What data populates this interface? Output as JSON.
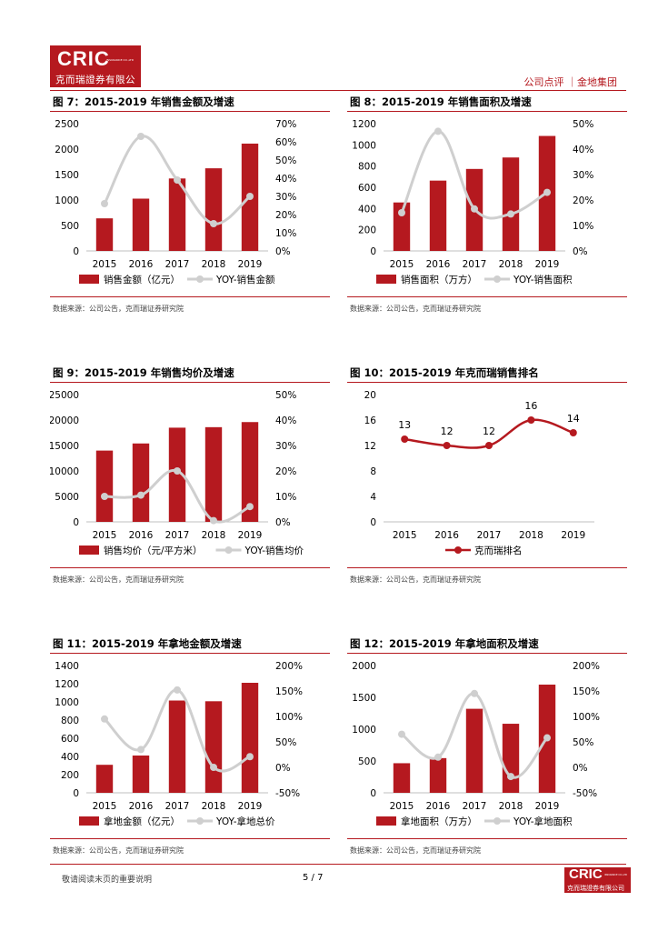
{
  "header": {
    "logo_text": "CRIC",
    "logo_tiny": "INSURANCE CO.,LTD",
    "logo_cn": "克而瑞證券有限公司",
    "right_text": "公司点评 ｜金地集团"
  },
  "footer": {
    "note": "敬请阅读末页的重要说明",
    "page": "5 / 7",
    "logo_text": "CRIC",
    "logo_tiny": "INSURANCE CO.,LTD",
    "logo_cn": "克而瑞證券有限公司"
  },
  "source_text": "数据来源：公司公告，克而瑞证券研究院",
  "colors": {
    "bar": "#b5191f",
    "line": "#cfcfcf",
    "rank_line": "#b5191f"
  },
  "chart_data": [
    {
      "title": "图 7：2015-2019 年销售金额及增速",
      "type": "bar+line",
      "categories": [
        "2015",
        "2016",
        "2017",
        "2018",
        "2019"
      ],
      "bar_values": [
        640,
        1027,
        1423,
        1623,
        2108
      ],
      "line_values": [
        0.26,
        0.63,
        0.39,
        0.15,
        0.3
      ],
      "left_ticks": [
        "0",
        "500",
        "1000",
        "1500",
        "2000",
        "2500"
      ],
      "left_max": 2500,
      "right_ticks": [
        "0%",
        "10%",
        "20%",
        "30%",
        "40%",
        "50%",
        "60%",
        "70%"
      ],
      "right_min": 0,
      "right_max": 0.7,
      "legend_bar": "销售金额（亿元）",
      "legend_line": "YOY-销售金额"
    },
    {
      "title": "图 8：2015-2019 年销售面积及增速",
      "type": "bar+line",
      "categories": [
        "2015",
        "2016",
        "2017",
        "2018",
        "2019"
      ],
      "bar_values": [
        457,
        663,
        773,
        881,
        1084
      ],
      "line_values": [
        0.15,
        0.47,
        0.165,
        0.145,
        0.23
      ],
      "left_ticks": [
        "0",
        "200",
        "400",
        "600",
        "800",
        "1000",
        "1200"
      ],
      "left_max": 1200,
      "right_ticks": [
        "0%",
        "10%",
        "20%",
        "30%",
        "40%",
        "50%"
      ],
      "right_min": 0,
      "right_max": 0.5,
      "legend_bar": "销售面积（万方）",
      "legend_line": "YOY-销售面积"
    },
    {
      "title": "图 9：2015-2019 年销售均价及增速",
      "type": "bar+line",
      "categories": [
        "2015",
        "2016",
        "2017",
        "2018",
        "2019"
      ],
      "bar_values": [
        14000,
        15400,
        18500,
        18600,
        19600
      ],
      "line_values": [
        0.1,
        0.105,
        0.2,
        0.005,
        0.06
      ],
      "left_ticks": [
        "0",
        "5000",
        "10000",
        "15000",
        "20000",
        "25000"
      ],
      "left_max": 25000,
      "right_ticks": [
        "0%",
        "10%",
        "20%",
        "30%",
        "40%",
        "50%"
      ],
      "right_min": 0,
      "right_max": 0.5,
      "legend_bar": "销售均价（元/平方米）",
      "legend_line": "YOY-销售均价"
    },
    {
      "title": "图 10：2015-2019 年克而瑞销售排名",
      "type": "line",
      "categories": [
        "2015",
        "2016",
        "2017",
        "2018",
        "2019"
      ],
      "values": [
        13,
        12,
        12,
        16,
        14
      ],
      "data_labels": [
        "13",
        "12",
        "12",
        "16",
        "14"
      ],
      "left_ticks": [
        "0",
        "4",
        "8",
        "12",
        "16",
        "20"
      ],
      "left_max": 20,
      "legend_line": "克而瑞排名"
    },
    {
      "title": "图 11：2015-2019 年拿地金额及增速",
      "type": "bar+line",
      "categories": [
        "2015",
        "2016",
        "2017",
        "2018",
        "2019"
      ],
      "bar_values": [
        308,
        410,
        1015,
        1007,
        1210
      ],
      "line_values": [
        0.95,
        0.35,
        1.52,
        0.0,
        0.21
      ],
      "left_ticks": [
        "0",
        "200",
        "400",
        "600",
        "800",
        "1000",
        "1200",
        "1400"
      ],
      "left_max": 1400,
      "right_ticks": [
        "-50%",
        "0%",
        "50%",
        "100%",
        "150%",
        "200%"
      ],
      "right_min": -0.5,
      "right_max": 2.0,
      "legend_bar": "拿地金额（亿元）",
      "legend_line": "YOY-拿地总价"
    },
    {
      "title": "图 12：2015-2019 年拿地面积及增速",
      "type": "bar+line",
      "categories": [
        "2015",
        "2016",
        "2017",
        "2018",
        "2019"
      ],
      "bar_values": [
        465,
        545,
        1320,
        1085,
        1700
      ],
      "line_values": [
        0.65,
        0.2,
        1.45,
        -0.18,
        0.58
      ],
      "left_ticks": [
        "0",
        "500",
        "1000",
        "1500",
        "2000"
      ],
      "left_max": 2000,
      "right_ticks": [
        "-50%",
        "0%",
        "50%",
        "100%",
        "150%",
        "200%"
      ],
      "right_min": -0.5,
      "right_max": 2.0,
      "legend_bar": "拿地面积（万方）",
      "legend_line": "YOY-拿地面积"
    }
  ]
}
